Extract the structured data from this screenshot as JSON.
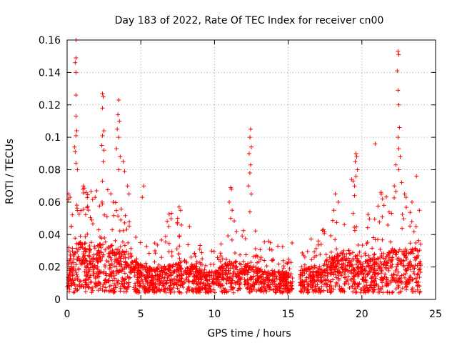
{
  "chart_data": {
    "type": "scatter",
    "title": "Day 183 of 2022, Rate Of TEC Index for receiver cn00",
    "xlabel": "GPS time / hours",
    "ylabel": "ROTI / TECUs",
    "xlim": [
      0,
      25
    ],
    "ylim": [
      0,
      0.16
    ],
    "x_ticks": [
      0,
      5,
      10,
      15,
      20,
      25
    ],
    "y_ticks": [
      0,
      0.02,
      0.04,
      0.06,
      0.08,
      0.1,
      0.12,
      0.14,
      0.16
    ],
    "x_tick_labels": [
      "0",
      "5",
      "10",
      "15",
      "20",
      "25"
    ],
    "y_tick_labels": [
      "0",
      "0.02",
      "0.04",
      "0.06",
      "0.08",
      "0.1",
      "0.12",
      "0.14",
      "0.16"
    ],
    "grid": true,
    "marker": "+",
    "color": "#ff0000",
    "data_gap_hours": [
      15.3,
      15.8
    ],
    "density_profile": {
      "hours": [
        0,
        1,
        2,
        3,
        4,
        5,
        6,
        7,
        8,
        9,
        10,
        11,
        12,
        13,
        14,
        15,
        16,
        17,
        18,
        19,
        20,
        21,
        22,
        23,
        24
      ],
      "typical_roti": [
        0.022,
        0.03,
        0.028,
        0.03,
        0.025,
        0.018,
        0.016,
        0.018,
        0.02,
        0.016,
        0.015,
        0.02,
        0.02,
        0.016,
        0.015,
        0.014,
        0.016,
        0.018,
        0.022,
        0.026,
        0.02,
        0.022,
        0.026,
        0.026,
        0.026
      ],
      "upper_envelope_roti": [
        0.065,
        0.07,
        0.065,
        0.07,
        0.055,
        0.045,
        0.035,
        0.055,
        0.045,
        0.035,
        0.033,
        0.06,
        0.05,
        0.04,
        0.037,
        0.035,
        0.04,
        0.04,
        0.05,
        0.06,
        0.045,
        0.065,
        0.07,
        0.06,
        0.04
      ]
    },
    "peak_points": [
      {
        "x": 0.6,
        "y": 0.16
      },
      {
        "x": 0.6,
        "y": 0.149
      },
      {
        "x": 0.55,
        "y": 0.146
      },
      {
        "x": 0.6,
        "y": 0.14
      },
      {
        "x": 0.6,
        "y": 0.126
      },
      {
        "x": 0.6,
        "y": 0.113
      },
      {
        "x": 0.65,
        "y": 0.104
      },
      {
        "x": 0.6,
        "y": 0.101
      },
      {
        "x": 0.5,
        "y": 0.094
      },
      {
        "x": 0.55,
        "y": 0.091
      },
      {
        "x": 0.6,
        "y": 0.084
      },
      {
        "x": 0.7,
        "y": 0.08
      },
      {
        "x": 2.4,
        "y": 0.127
      },
      {
        "x": 2.45,
        "y": 0.125
      },
      {
        "x": 2.4,
        "y": 0.118
      },
      {
        "x": 2.5,
        "y": 0.104
      },
      {
        "x": 2.4,
        "y": 0.101
      },
      {
        "x": 2.35,
        "y": 0.095
      },
      {
        "x": 2.5,
        "y": 0.092
      },
      {
        "x": 2.45,
        "y": 0.085
      },
      {
        "x": 2.4,
        "y": 0.073
      },
      {
        "x": 3.5,
        "y": 0.123
      },
      {
        "x": 3.45,
        "y": 0.114
      },
      {
        "x": 3.55,
        "y": 0.11
      },
      {
        "x": 3.4,
        "y": 0.105
      },
      {
        "x": 3.5,
        "y": 0.1
      },
      {
        "x": 3.35,
        "y": 0.093
      },
      {
        "x": 3.6,
        "y": 0.088
      },
      {
        "x": 3.5,
        "y": 0.08
      },
      {
        "x": 3.8,
        "y": 0.085
      },
      {
        "x": 3.9,
        "y": 0.079
      },
      {
        "x": 4.1,
        "y": 0.07
      },
      {
        "x": 4.2,
        "y": 0.065
      },
      {
        "x": 1.1,
        "y": 0.07
      },
      {
        "x": 1.3,
        "y": 0.066
      },
      {
        "x": 0.1,
        "y": 0.065
      },
      {
        "x": 0.2,
        "y": 0.063
      },
      {
        "x": 1.9,
        "y": 0.063
      },
      {
        "x": 2.0,
        "y": 0.067
      },
      {
        "x": 5.2,
        "y": 0.07
      },
      {
        "x": 5.1,
        "y": 0.063
      },
      {
        "x": 11.1,
        "y": 0.069
      },
      {
        "x": 11.15,
        "y": 0.068
      },
      {
        "x": 11.0,
        "y": 0.06
      },
      {
        "x": 11.2,
        "y": 0.055
      },
      {
        "x": 11.1,
        "y": 0.05
      },
      {
        "x": 12.45,
        "y": 0.105
      },
      {
        "x": 12.4,
        "y": 0.1
      },
      {
        "x": 12.5,
        "y": 0.094
      },
      {
        "x": 12.35,
        "y": 0.09
      },
      {
        "x": 12.45,
        "y": 0.083
      },
      {
        "x": 12.4,
        "y": 0.078
      },
      {
        "x": 12.3,
        "y": 0.07
      },
      {
        "x": 12.4,
        "y": 0.054
      },
      {
        "x": 12.5,
        "y": 0.065
      },
      {
        "x": 7.6,
        "y": 0.057
      },
      {
        "x": 7.7,
        "y": 0.055
      },
      {
        "x": 7.5,
        "y": 0.05
      },
      {
        "x": 6.9,
        "y": 0.045
      },
      {
        "x": 8.3,
        "y": 0.045
      },
      {
        "x": 18.2,
        "y": 0.065
      },
      {
        "x": 18.4,
        "y": 0.06
      },
      {
        "x": 18.1,
        "y": 0.055
      },
      {
        "x": 19.3,
        "y": 0.074
      },
      {
        "x": 19.4,
        "y": 0.073
      },
      {
        "x": 19.5,
        "y": 0.064
      },
      {
        "x": 19.6,
        "y": 0.09
      },
      {
        "x": 19.65,
        "y": 0.088
      },
      {
        "x": 19.55,
        "y": 0.085
      },
      {
        "x": 19.7,
        "y": 0.08
      },
      {
        "x": 19.6,
        "y": 0.076
      },
      {
        "x": 19.5,
        "y": 0.07
      },
      {
        "x": 20.9,
        "y": 0.096
      },
      {
        "x": 21.3,
        "y": 0.066
      },
      {
        "x": 21.4,
        "y": 0.062
      },
      {
        "x": 21.5,
        "y": 0.058
      },
      {
        "x": 22.45,
        "y": 0.153
      },
      {
        "x": 22.5,
        "y": 0.151
      },
      {
        "x": 22.4,
        "y": 0.141
      },
      {
        "x": 22.45,
        "y": 0.129
      },
      {
        "x": 22.5,
        "y": 0.12
      },
      {
        "x": 22.55,
        "y": 0.106
      },
      {
        "x": 22.45,
        "y": 0.1
      },
      {
        "x": 22.5,
        "y": 0.093
      },
      {
        "x": 22.6,
        "y": 0.088
      },
      {
        "x": 22.3,
        "y": 0.083
      },
      {
        "x": 22.5,
        "y": 0.08
      },
      {
        "x": 22.7,
        "y": 0.072
      },
      {
        "x": 22.2,
        "y": 0.07
      },
      {
        "x": 22.9,
        "y": 0.065
      },
      {
        "x": 23.0,
        "y": 0.063
      },
      {
        "x": 23.7,
        "y": 0.076
      },
      {
        "x": 23.4,
        "y": 0.06
      },
      {
        "x": 23.9,
        "y": 0.055
      }
    ]
  }
}
